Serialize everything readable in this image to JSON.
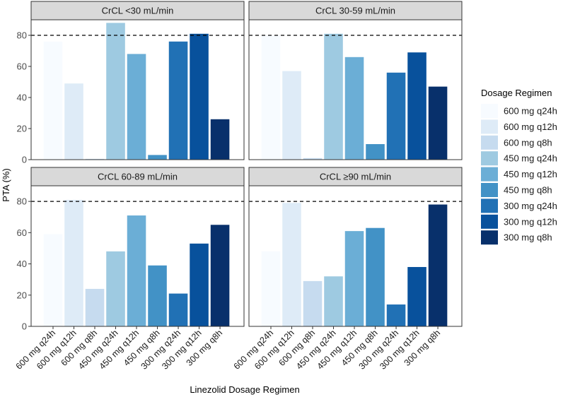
{
  "chart_data": {
    "type": "bar",
    "layout": "facet-grid-2x2",
    "ylabel": "PTA (%)",
    "xlabel": "Linezolid Dosage Regimen",
    "ylim": [
      0,
      90
    ],
    "yticks": [
      0,
      20,
      40,
      60,
      80
    ],
    "reference_line": 80,
    "grid": false,
    "legend_title": "Dosage Regimen",
    "legend_position": "right",
    "categories": [
      "600 mg q24h",
      "600 mg q12h",
      "600 mg q8h",
      "450 mg q24h",
      "450 mg q12h",
      "450 mg q8h",
      "300 mg q24h",
      "300 mg q12h",
      "300 mg q8h"
    ],
    "colors": [
      "#F7FBFF",
      "#DEEBF7",
      "#C6DBEF",
      "#9ECAE1",
      "#6BAED6",
      "#4292C6",
      "#2171B5",
      "#08519C",
      "#08306B"
    ],
    "panels": [
      {
        "title": "CrCL <30 mL/min",
        "values": [
          76,
          49,
          0.5,
          88,
          68,
          3,
          76,
          81,
          26
        ]
      },
      {
        "title": "CrCL 30-59 mL/min",
        "values": [
          80,
          57,
          1,
          81,
          66,
          10,
          56,
          69,
          47
        ]
      },
      {
        "title": "CrCL 60-89 mL/min",
        "values": [
          59,
          81,
          24,
          48,
          71,
          39,
          21,
          53,
          65
        ]
      },
      {
        "title": "CrCL ≥90 mL/min",
        "values": [
          48,
          79,
          29,
          32,
          61,
          63,
          14,
          38,
          78
        ]
      }
    ]
  }
}
